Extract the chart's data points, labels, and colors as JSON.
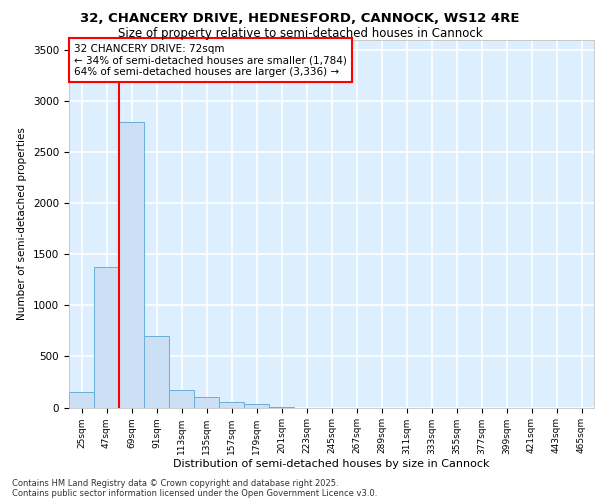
{
  "title_line1": "32, CHANCERY DRIVE, HEDNESFORD, CANNOCK, WS12 4RE",
  "title_line2": "Size of property relative to semi-detached houses in Cannock",
  "xlabel": "Distribution of semi-detached houses by size in Cannock",
  "ylabel": "Number of semi-detached properties",
  "categories": [
    "25sqm",
    "47sqm",
    "69sqm",
    "91sqm",
    "113sqm",
    "135sqm",
    "157sqm",
    "179sqm",
    "201sqm",
    "223sqm",
    "245sqm",
    "267sqm",
    "289sqm",
    "311sqm",
    "333sqm",
    "355sqm",
    "377sqm",
    "399sqm",
    "421sqm",
    "443sqm",
    "465sqm"
  ],
  "values": [
    150,
    1380,
    2800,
    700,
    175,
    100,
    55,
    35,
    5,
    0,
    0,
    0,
    0,
    0,
    0,
    0,
    0,
    0,
    0,
    0,
    0
  ],
  "bar_color": "#cce0f5",
  "bar_edge_color": "#6aaed6",
  "red_line_x": 1.5,
  "annotation_title": "32 CHANCERY DRIVE: 72sqm",
  "annotation_line2": "← 34% of semi-detached houses are smaller (1,784)",
  "annotation_line3": "64% of semi-detached houses are larger (3,336) →",
  "ylim": [
    0,
    3600
  ],
  "yticks": [
    0,
    500,
    1000,
    1500,
    2000,
    2500,
    3000,
    3500
  ],
  "background_color": "#ddeeff",
  "grid_color": "#ffffff",
  "footer_line1": "Contains HM Land Registry data © Crown copyright and database right 2025.",
  "footer_line2": "Contains public sector information licensed under the Open Government Licence v3.0."
}
